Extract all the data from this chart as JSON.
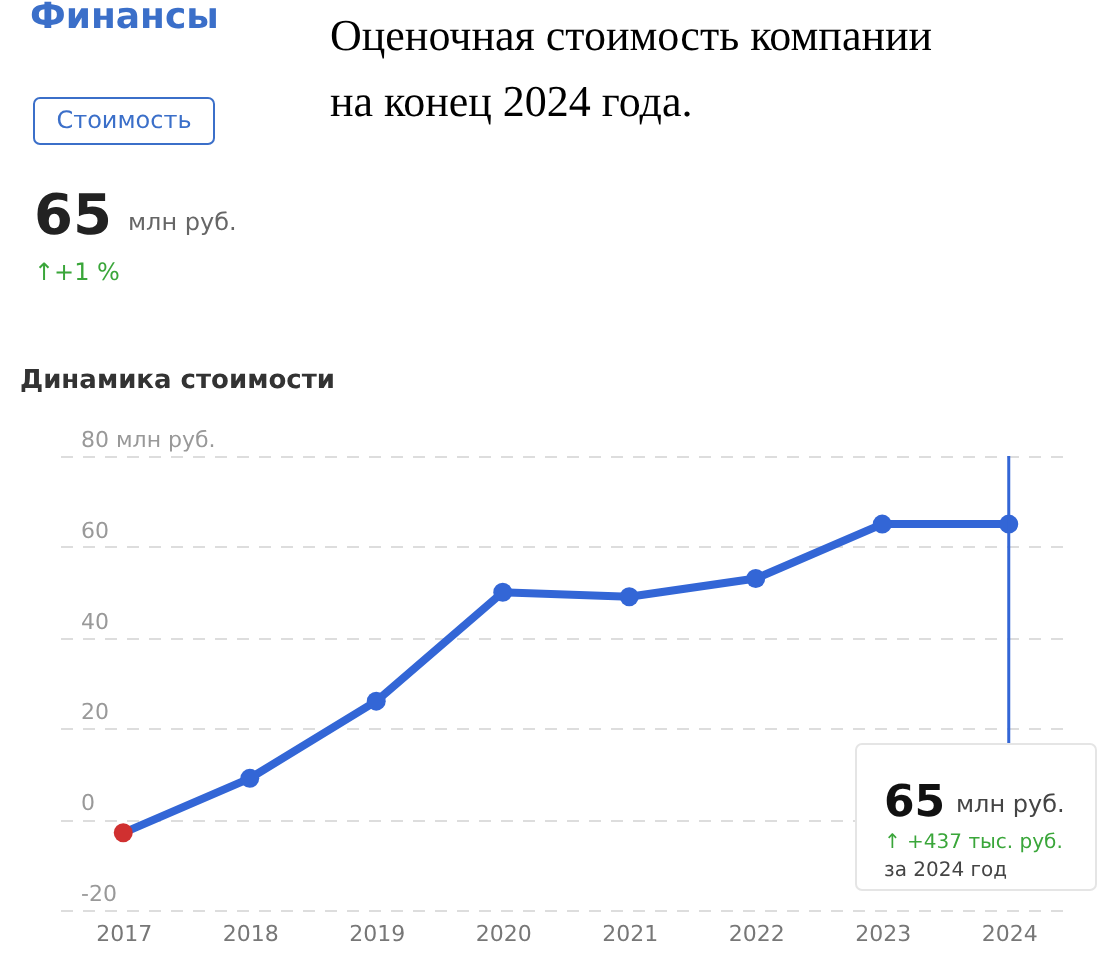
{
  "chart_data": {
    "type": "line",
    "title": "Финансы",
    "subtitle": "Оценочная стоимость компании\nна конец 2024 года.",
    "categories": [
      "2017",
      "2018",
      "2019",
      "2020",
      "2021",
      "2022",
      "2023",
      "2024"
    ],
    "series": [
      {
        "color": "#3366d6",
        "colors": [
          "#d03030",
          "#3366d6",
          "#3366d6",
          "#3366d6",
          "#3366d6",
          "#3366d6",
          "#3366d6",
          "#3366d6"
        ],
        "values": [
          -3,
          9,
          26,
          50,
          49,
          53,
          65,
          65
        ]
      }
    ],
    "ylim": [
      -20,
      80
    ],
    "yticks": [
      {
        "value": 80,
        "label": "80 млн руб."
      },
      60,
      40,
      20,
      0,
      -20
    ],
    "grid": "y",
    "marker": "circle",
    "line_style": "solid",
    "ref_lines": [
      {
        "axis": "x",
        "value": "2024",
        "color": "#3366d6"
      }
    ],
    "annotations": [
      "Стоимость",
      "65",
      "млн руб.",
      "↑+1 %",
      "Динамика стоимости",
      "65",
      "млн руб.",
      "↑ +437 тыс. руб.",
      "за 2024 год"
    ]
  }
}
